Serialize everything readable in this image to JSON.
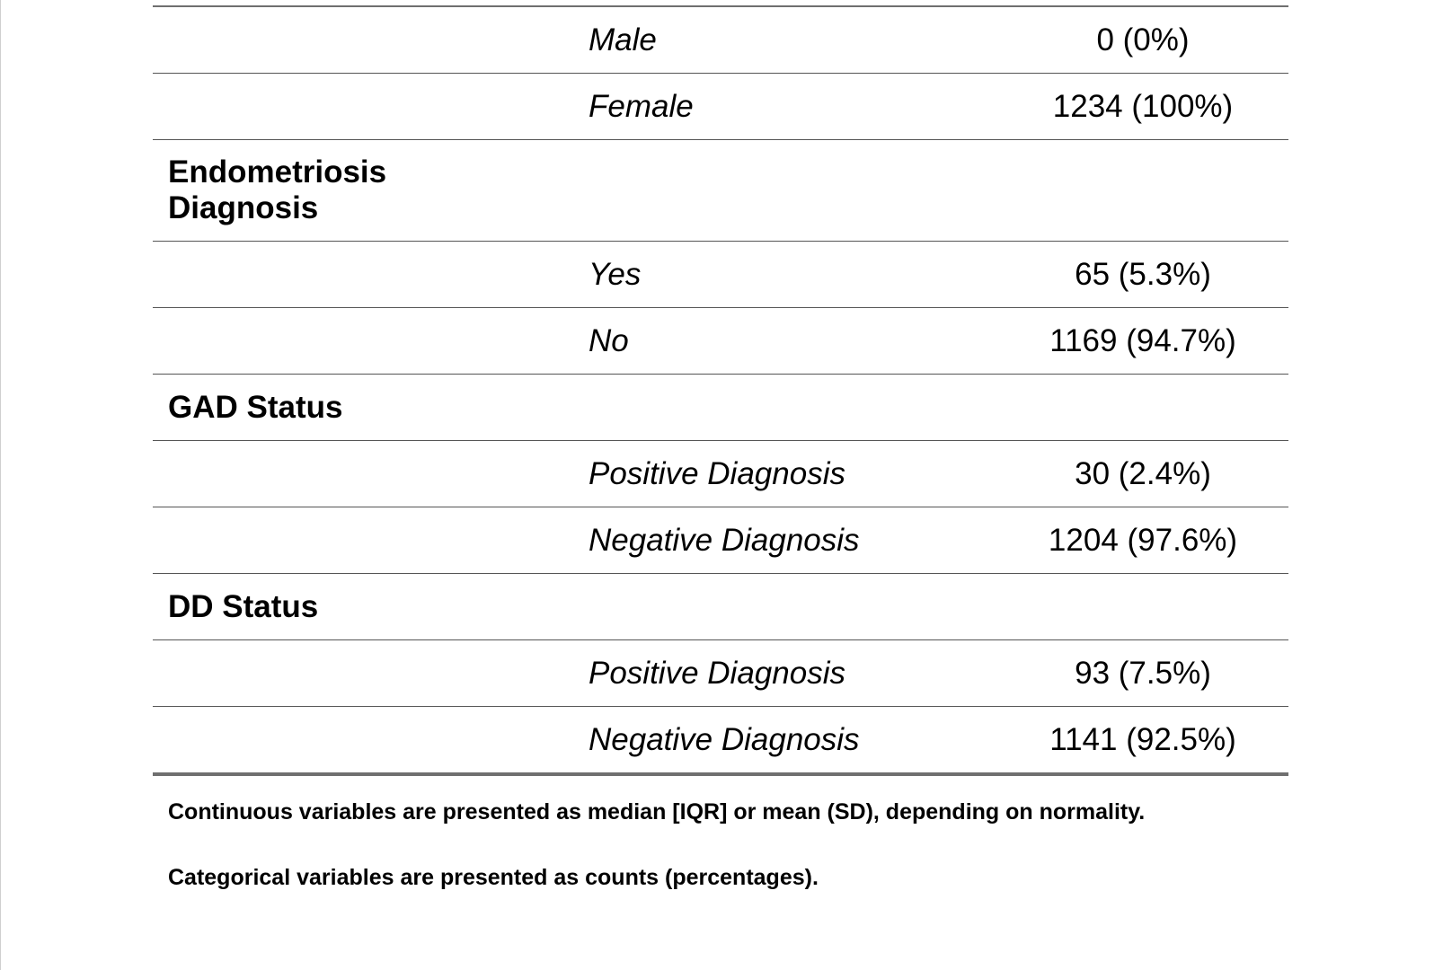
{
  "table": {
    "rows": [
      {
        "type": "sub",
        "label": "Male",
        "value": "0 (0%)"
      },
      {
        "type": "sub",
        "label": "Female",
        "value": "1234 (100%)"
      },
      {
        "type": "group",
        "label_line1": "Endometriosis",
        "label_line2": "Diagnosis"
      },
      {
        "type": "sub",
        "label": "Yes",
        "value": "65 (5.3%)"
      },
      {
        "type": "sub",
        "label": "No",
        "value": "1169 (94.7%)"
      },
      {
        "type": "group",
        "label": "GAD Status"
      },
      {
        "type": "sub",
        "label": "Positive Diagnosis",
        "value": "30 (2.4%)"
      },
      {
        "type": "sub",
        "label": "Negative Diagnosis",
        "value": "1204 (97.6%)"
      },
      {
        "type": "group",
        "label": "DD Status"
      },
      {
        "type": "sub",
        "label": "Positive Diagnosis",
        "value": "93 (7.5%)"
      },
      {
        "type": "sub",
        "label": "Negative Diagnosis",
        "value": "1141 (92.5%)"
      }
    ]
  },
  "notes": {
    "continuous": "Continuous variables are presented as median [IQR] or mean (SD), depending on normality.",
    "categorical": "Categorical variables are presented as counts (percentages)."
  }
}
